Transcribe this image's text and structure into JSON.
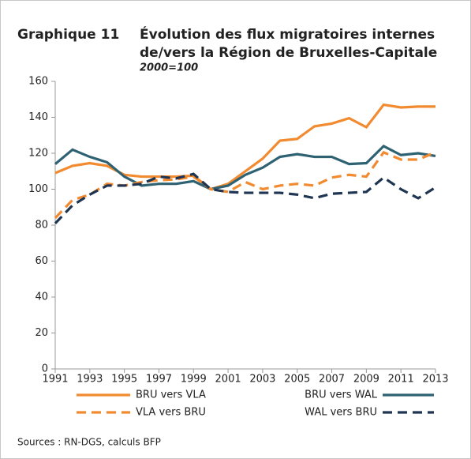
{
  "chart_data": {
    "type": "line",
    "label": "Graphique 11",
    "title_lines": [
      "Évolution des flux migratoires internes",
      "de/vers la Région de Bruxelles-Capitale"
    ],
    "subtitle": "2000=100",
    "x": [
      1991,
      1992,
      1993,
      1994,
      1995,
      1996,
      1997,
      1998,
      1999,
      2000,
      2001,
      2002,
      2003,
      2004,
      2005,
      2006,
      2007,
      2008,
      2009,
      2010,
      2011,
      2012,
      2013
    ],
    "xlim": [
      1991,
      2013
    ],
    "xticks": [
      1991,
      1993,
      1995,
      1997,
      1999,
      2001,
      2003,
      2005,
      2007,
      2009,
      2011,
      2013
    ],
    "ylim": [
      0,
      160
    ],
    "yticks": [
      0,
      20,
      40,
      60,
      80,
      100,
      120,
      140,
      160
    ],
    "grid": false,
    "series": [
      {
        "name": "BRU vers VLA",
        "color": "#f28a30",
        "dash": "solid",
        "values": [
          109,
          113,
          114.5,
          113,
          108,
          107,
          107,
          107,
          107.5,
          100,
          103,
          110,
          117,
          127,
          128,
          135,
          136.5,
          139.5,
          134.5,
          147,
          145.5,
          146,
          146
        ]
      },
      {
        "name": "BRU vers WAL",
        "color": "#2e6272",
        "dash": "solid",
        "values": [
          114,
          122,
          118,
          115,
          107,
          102,
          103,
          103,
          104.5,
          100,
          102,
          108,
          112,
          118,
          119.5,
          118,
          118,
          114,
          114.5,
          124,
          119,
          120,
          118.5
        ]
      },
      {
        "name": "VLA vers BRU",
        "color": "#f28a30",
        "dash": "dashed",
        "values": [
          84,
          94,
          97,
          103,
          102,
          104,
          105,
          105.5,
          107,
          100,
          98.5,
          104,
          100,
          102,
          103,
          102,
          106.5,
          108,
          107,
          120.5,
          116.5,
          116.5,
          120.5
        ]
      },
      {
        "name": "WAL vers BRU",
        "color": "#1f3552",
        "dash": "dashed",
        "values": [
          81,
          91,
          97,
          102,
          102,
          103,
          107,
          106,
          108.5,
          100,
          98.5,
          98,
          98,
          98,
          97,
          95,
          97.5,
          98,
          98.5,
          106.5,
          100,
          95,
          101
        ]
      }
    ],
    "source": "Sources : RN-DGS, calculs BFP"
  }
}
